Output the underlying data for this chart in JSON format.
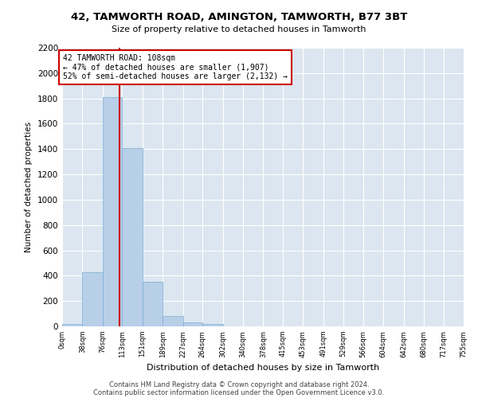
{
  "title": "42, TAMWORTH ROAD, AMINGTON, TAMWORTH, B77 3BT",
  "subtitle": "Size of property relative to detached houses in Tamworth",
  "xlabel": "Distribution of detached houses by size in Tamworth",
  "ylabel": "Number of detached properties",
  "bar_color": "#b8cfe8",
  "bar_edge_color": "#7aadd4",
  "background_color": "#dce6f0",
  "grid_color": "#ffffff",
  "property_size": 108,
  "property_line_color": "#cc0000",
  "annotation_text": "42 TAMWORTH ROAD: 108sqm\n← 47% of detached houses are smaller (1,907)\n52% of semi-detached houses are larger (2,132) →",
  "annotation_box_color": "#cc0000",
  "footer_line1": "Contains HM Land Registry data © Crown copyright and database right 2024.",
  "footer_line2": "Contains public sector information licensed under the Open Government Licence v3.0.",
  "bin_edges": [
    0,
    38,
    76,
    113,
    151,
    189,
    227,
    264,
    302,
    340,
    378,
    415,
    453,
    491,
    529,
    566,
    604,
    642,
    680,
    717,
    755
  ],
  "bin_labels": [
    "0sqm",
    "38sqm",
    "76sqm",
    "113sqm",
    "151sqm",
    "189sqm",
    "227sqm",
    "264sqm",
    "302sqm",
    "340sqm",
    "378sqm",
    "415sqm",
    "453sqm",
    "491sqm",
    "529sqm",
    "566sqm",
    "604sqm",
    "642sqm",
    "680sqm",
    "717sqm",
    "755sqm"
  ],
  "bar_heights": [
    20,
    425,
    1810,
    1410,
    355,
    80,
    30,
    20,
    0,
    0,
    0,
    0,
    0,
    0,
    0,
    0,
    0,
    0,
    0,
    0
  ],
  "ylim": [
    0,
    2200
  ],
  "yticks": [
    0,
    200,
    400,
    600,
    800,
    1000,
    1200,
    1400,
    1600,
    1800,
    2000,
    2200
  ],
  "fig_width": 6.0,
  "fig_height": 5.0,
  "fig_dpi": 100
}
